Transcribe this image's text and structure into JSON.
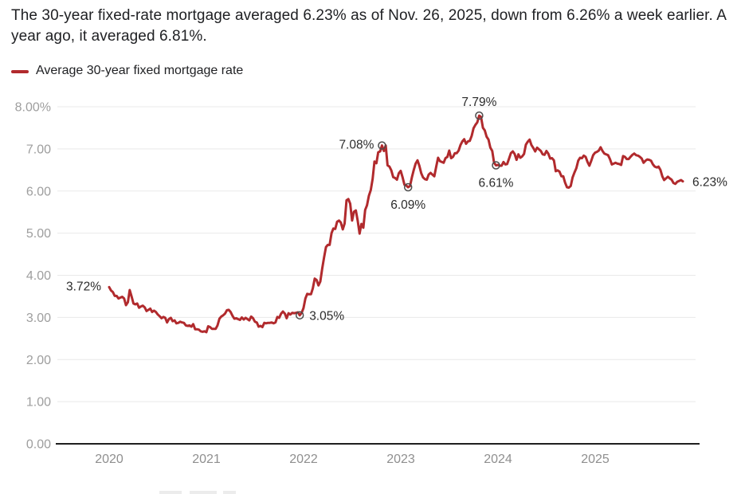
{
  "header": {
    "description": "The 30-year fixed-rate mortgage averaged 6.23% as of Nov. 26, 2025, down from 6.26% a week earlier. A year ago, it averaged 6.81%."
  },
  "legend": {
    "label": "Average 30-year fixed mortgage rate",
    "swatch_color": "#b12a2d"
  },
  "chart_data": {
    "type": "line",
    "title": "Average 30-year fixed mortgage rate",
    "xlabel": "",
    "ylabel": "",
    "ylim": [
      0,
      8
    ],
    "x_range": [
      "Jan 2020",
      "Nov 26, 2025"
    ],
    "grid": "horizontal",
    "legend_position": "top-left",
    "line_color": "#b12a2d",
    "axis_color": "#1f1f1f",
    "gridline_color": "#e9e9e9",
    "annotation_circle_color": "#4c4c4c",
    "y_ticks": [
      {
        "value": 8,
        "label": "8.00%"
      },
      {
        "value": 7,
        "label": "7.00"
      },
      {
        "value": 6,
        "label": "6.00"
      },
      {
        "value": 5,
        "label": "5.00"
      },
      {
        "value": 4,
        "label": "4.00"
      },
      {
        "value": 3,
        "label": "3.00"
      },
      {
        "value": 2,
        "label": "2.00"
      },
      {
        "value": 1,
        "label": "1.00"
      },
      {
        "value": 0,
        "label": "0.00"
      }
    ],
    "x_tick_labels": [
      "2020",
      "2021",
      "2022",
      "2023",
      "2024",
      "2025"
    ],
    "series": [
      {
        "name": "Average 30-year fixed mortgage rate",
        "cadence": "weekly",
        "values": [
          3.72,
          3.64,
          3.6,
          3.51,
          3.51,
          3.45,
          3.47,
          3.49,
          3.45,
          3.29,
          3.36,
          3.65,
          3.5,
          3.33,
          3.31,
          3.33,
          3.23,
          3.26,
          3.28,
          3.24,
          3.15,
          3.18,
          3.21,
          3.13,
          3.16,
          3.13,
          3.07,
          3.03,
          2.98,
          3.01,
          2.99,
          2.88,
          2.96,
          2.99,
          2.91,
          2.93,
          2.86,
          2.87,
          2.9,
          2.88,
          2.87,
          2.81,
          2.8,
          2.81,
          2.78,
          2.84,
          2.72,
          2.72,
          2.71,
          2.67,
          2.66,
          2.67,
          2.65,
          2.79,
          2.77,
          2.73,
          2.73,
          2.73,
          2.81,
          2.97,
          3.02,
          3.05,
          3.09,
          3.17,
          3.18,
          3.13,
          3.04,
          2.97,
          2.98,
          2.96,
          2.94,
          3.0,
          2.95,
          2.99,
          2.96,
          2.93,
          3.02,
          2.98,
          2.9,
          2.88,
          2.78,
          2.8,
          2.77,
          2.87,
          2.86,
          2.87,
          2.87,
          2.88,
          2.86,
          2.88,
          3.01,
          2.99,
          3.09,
          3.14,
          3.09,
          2.98,
          3.1,
          3.07,
          3.11,
          3.1,
          3.11,
          3.12,
          3.05,
          3.11,
          3.22,
          3.45,
          3.56,
          3.55,
          3.55,
          3.69,
          3.92,
          3.89,
          3.76,
          3.85,
          4.16,
          4.42,
          4.67,
          4.72,
          4.72,
          5.0,
          5.11,
          5.1,
          5.27,
          5.3,
          5.25,
          5.09,
          5.23,
          5.78,
          5.81,
          5.7,
          5.3,
          5.51,
          5.54,
          5.3,
          4.99,
          5.22,
          5.13,
          5.55,
          5.66,
          5.89,
          6.02,
          6.29,
          6.7,
          6.66,
          6.92,
          6.94,
          7.08,
          6.95,
          7.08,
          6.61,
          6.58,
          6.49,
          6.33,
          6.31,
          6.27,
          6.42,
          6.48,
          6.33,
          6.15,
          6.13,
          6.09,
          6.12,
          6.32,
          6.5,
          6.65,
          6.73,
          6.6,
          6.42,
          6.32,
          6.28,
          6.27,
          6.39,
          6.43,
          6.39,
          6.35,
          6.57,
          6.79,
          6.71,
          6.69,
          6.67,
          6.78,
          6.81,
          6.96,
          6.78,
          6.81,
          6.9,
          6.9,
          6.96,
          7.09,
          7.18,
          7.23,
          7.12,
          7.18,
          7.19,
          7.31,
          7.49,
          7.57,
          7.63,
          7.79,
          7.76,
          7.5,
          7.44,
          7.29,
          7.22,
          7.03,
          6.95,
          6.67,
          6.61,
          6.62,
          6.6,
          6.6,
          6.69,
          6.63,
          6.64,
          6.77,
          6.9,
          6.94,
          6.88,
          6.74,
          6.87,
          6.79,
          6.82,
          6.88,
          7.1,
          7.17,
          7.22,
          7.09,
          7.02,
          6.94,
          7.03,
          6.99,
          6.95,
          6.87,
          6.86,
          6.95,
          6.89,
          6.77,
          6.78,
          6.73,
          6.47,
          6.49,
          6.46,
          6.35,
          6.35,
          6.2,
          6.09,
          6.08,
          6.12,
          6.32,
          6.44,
          6.54,
          6.72,
          6.79,
          6.78,
          6.84,
          6.81,
          6.69,
          6.6,
          6.72,
          6.85,
          6.91,
          6.93,
          6.96,
          7.04,
          6.95,
          6.89,
          6.87,
          6.85,
          6.76,
          6.63,
          6.65,
          6.67,
          6.65,
          6.64,
          6.62,
          6.83,
          6.81,
          6.76,
          6.76,
          6.81,
          6.86,
          6.89,
          6.85,
          6.84,
          6.81,
          6.77,
          6.67,
          6.72,
          6.75,
          6.74,
          6.72,
          6.63,
          6.58,
          6.56,
          6.58,
          6.5,
          6.35,
          6.26,
          6.3,
          6.34,
          6.3,
          6.27,
          6.19,
          6.17,
          6.22,
          6.24,
          6.26,
          6.23
        ]
      }
    ],
    "annotations": [
      {
        "index": 0,
        "value": 3.72,
        "label": "3.72%",
        "placement": "left",
        "circle": false
      },
      {
        "index": 102,
        "value": 3.05,
        "label": "3.05%",
        "placement": "right",
        "circle": true
      },
      {
        "index": 146,
        "value": 7.08,
        "label": "7.08%",
        "placement": "left",
        "circle": true
      },
      {
        "index": 160,
        "value": 6.09,
        "label": "6.09%",
        "placement": "below",
        "circle": true
      },
      {
        "index": 198,
        "value": 7.79,
        "label": "7.79%",
        "placement": "above",
        "circle": true
      },
      {
        "index": 207,
        "value": 6.61,
        "label": "6.61%",
        "placement": "below",
        "circle": true
      },
      {
        "index": 307,
        "value": 6.23,
        "label": "6.23%",
        "placement": "right",
        "circle": false
      }
    ]
  }
}
